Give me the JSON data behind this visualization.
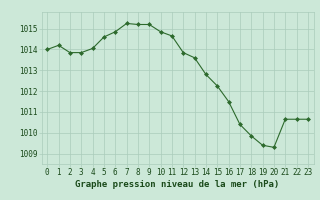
{
  "x": [
    0,
    1,
    2,
    3,
    4,
    5,
    6,
    7,
    8,
    9,
    10,
    11,
    12,
    13,
    14,
    15,
    16,
    17,
    18,
    19,
    20,
    21,
    22,
    23
  ],
  "y": [
    1014.0,
    1014.2,
    1013.85,
    1013.85,
    1014.05,
    1014.6,
    1014.85,
    1015.25,
    1015.2,
    1015.2,
    1014.85,
    1014.65,
    1013.85,
    1013.6,
    1012.8,
    1012.25,
    1011.5,
    1010.4,
    1009.85,
    1009.4,
    1009.3,
    1010.65,
    1010.65,
    1010.65
  ],
  "line_color": "#2d6a2d",
  "marker_color": "#2d6a2d",
  "bg_color": "#cce8d8",
  "grid_color": "#aaccbb",
  "title": "Graphe pression niveau de la mer (hPa)",
  "title_color": "#1a4a1a",
  "ylim": [
    1008.5,
    1015.8
  ],
  "yticks": [
    1009,
    1010,
    1011,
    1012,
    1013,
    1014,
    1015
  ],
  "xticks": [
    0,
    1,
    2,
    3,
    4,
    5,
    6,
    7,
    8,
    9,
    10,
    11,
    12,
    13,
    14,
    15,
    16,
    17,
    18,
    19,
    20,
    21,
    22,
    23
  ],
  "tick_label_size": 5.5,
  "title_fontsize": 6.5
}
